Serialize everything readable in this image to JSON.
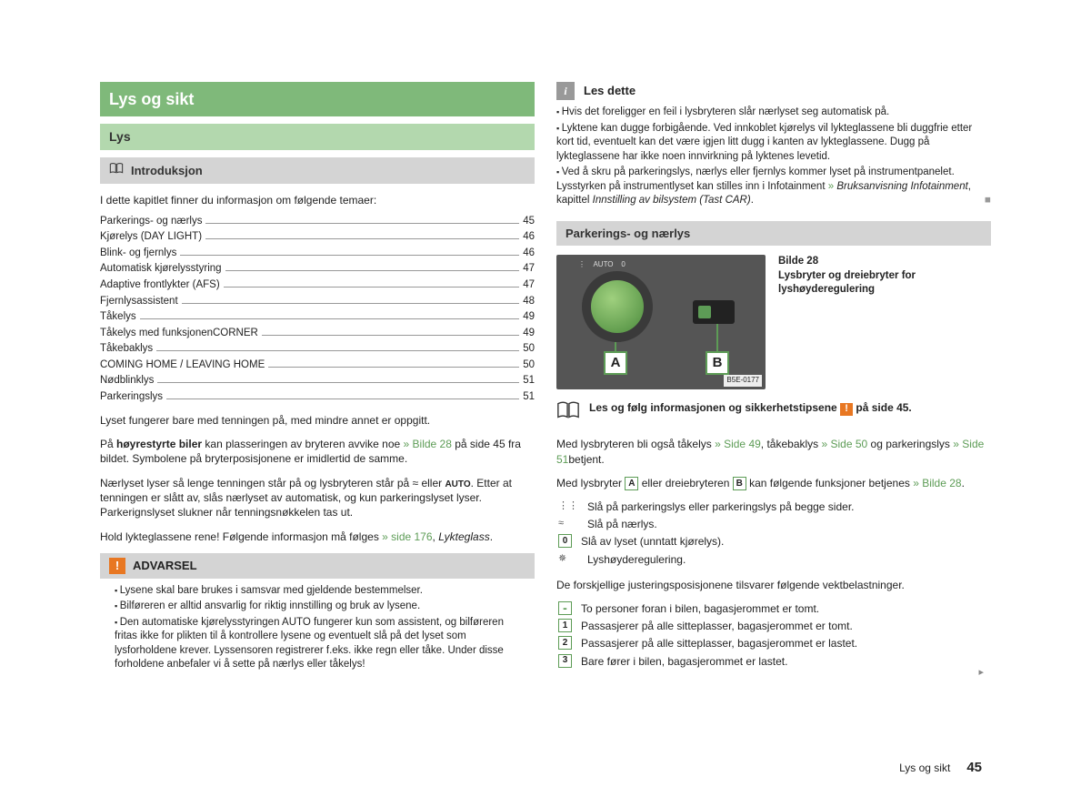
{
  "colors": {
    "title_bg": "#7fb97a",
    "sub_bg": "#b3d8ae",
    "section_bg": "#d4d4d4",
    "link": "#5d9c56",
    "warn": "#e87722"
  },
  "left": {
    "title": "Lys og sikt",
    "sub": "Lys",
    "section": "Introduksjon",
    "intro": "I dette kapitlet finner du informasjon om følgende temaer:",
    "toc": [
      {
        "label": "Parkerings- og nærlys",
        "page": "45"
      },
      {
        "label": "Kjørelys (DAY LIGHT)",
        "page": "46"
      },
      {
        "label": "Blink- og fjernlys",
        "page": "46"
      },
      {
        "label": "Automatisk kjørelysstyring",
        "page": "47"
      },
      {
        "label": "Adaptive frontlykter (AFS)",
        "page": "47"
      },
      {
        "label": "Fjernlysassistent",
        "page": "48"
      },
      {
        "label": "Tåkelys",
        "page": "49"
      },
      {
        "label": "Tåkelys med funksjonenCORNER",
        "page": "49"
      },
      {
        "label": "Tåkebaklys",
        "page": "50"
      },
      {
        "label": "COMING HOME / LEAVING HOME",
        "page": "50"
      },
      {
        "label": "Nødblinklys",
        "page": "51"
      },
      {
        "label": "Parkeringslys",
        "page": "51"
      }
    ],
    "p1": "Lyset fungerer bare med tenningen på, med mindre annet er oppgitt.",
    "p2a": "På ",
    "p2b": "høyrestyrte biler",
    "p2c": " kan plasseringen av bryteren avvike noe ",
    "p2link": "» Bilde 28",
    "p2d": " på side 45 fra bildet. Symbolene på bryterposisjonene er imidlertid de samme.",
    "p3a": "Nærlyset lyser så lenge tenningen står på og lysbryteren står på ",
    "p3s1": "≈",
    "p3b": " eller ",
    "p3s2": "AUTO",
    "p3c": ". Etter at tenningen er slått av, slås nærlyset av automatisk, og kun parkeringslyset lyser. Parkerignslyset slukner når tenningsnøkkelen tas ut.",
    "p4a": "Hold lykteglassene rene! Følgende informasjon må følges ",
    "p4link": "» side 176",
    "p4b": ", ",
    "p4i": "Lykteglass",
    "p4c": ".",
    "warn_title": "ADVARSEL",
    "warn": [
      "Lysene skal bare brukes i samsvar med gjeldende bestemmelser.",
      "Bilføreren er alltid ansvarlig for riktig innstilling og bruk av lysene.",
      "Den automatiske kjørelysstyringen AUTO fungerer kun som assistent, og bilføreren fritas ikke for plikten til å kontrollere lysene og eventuelt slå på det lyset som lysforholdene krever. Lyssensoren registrerer f.eks. ikke regn eller tåke. Under disse forholdene anbefaler vi å sette på nærlys eller tåkelys!"
    ]
  },
  "right": {
    "note_title": "Les dette",
    "notes": [
      "Hvis det foreligger en feil i lysbryteren slår nærlyset seg automatisk på.",
      "Lyktene kan dugge forbigående. Ved innkoblet kjørelys vil lykteglassene bli duggfrie etter kort tid, eventuelt kan det være igjen litt dugg i kanten av lykteglassene. Dugg på lykteglassene har ikke noen innvirkning på lyktenes levetid."
    ],
    "note3a": "Ved å skru på parkeringslys, nærlys eller fjernlys kommer lyset på instrumentpanelet. Lysstyrken på instrumentlyset kan stilles inn i Infotainment ",
    "note3link": "» ",
    "note3i1": "Bruksanvisning Infotainment",
    "note3b": ", kapittel ",
    "note3i2": "Innstilling av bilsystem (Tast CAR)",
    "note3c": ".",
    "section2": "Parkerings- og nærlys",
    "fig_num": "Bilde 28",
    "fig_cap": "Lysbryter og dreiebryter for lyshøyderegulering",
    "fig_code": "B5E-0177",
    "read_a": "Les og følg informasjonen og sikkerhetstipsene ",
    "read_b": " på side 45.",
    "p5a": "Med lysbryteren bli også tåkelys ",
    "p5l1": "» Side 49",
    "p5b": ", tåkebaklys ",
    "p5l2": "» Side 50",
    "p5c": " og parkeringslys ",
    "p5l3": "» Side 51",
    "p5d": "betjent.",
    "p6a": "Med lysbryter ",
    "p6b": " eller dreiebryteren ",
    "p6c": " kan følgende funksjoner betjenes ",
    "p6link": "» Bilde 28",
    "p6d": ".",
    "funcs": [
      {
        "sym": "⋮⋮",
        "text": "Slå på parkeringslys eller parkeringslys på begge sider."
      },
      {
        "sym": "≈",
        "text": "Slå på nærlys."
      },
      {
        "sym": "0",
        "text": "Slå av lyset (unntatt kjørelys)."
      },
      {
        "sym": "✵",
        "text": "Lyshøyderegulering."
      }
    ],
    "p7": "De forskjellige justeringsposisjonene tilsvarer følgende vektbelastninger.",
    "loads": [
      {
        "n": "-",
        "text": "To personer foran i bilen, bagasjerommet er tomt.",
        "dot": true
      },
      {
        "n": "1",
        "text": "Passasjerer på alle sitteplasser, bagasjerommet er tomt."
      },
      {
        "n": "2",
        "text": "Passasjerer på alle sitteplasser, bagasjerommet er lastet."
      },
      {
        "n": "3",
        "text": "Bare fører i bilen, bagasjerommet er lastet."
      }
    ]
  },
  "footer": {
    "section": "Lys og sikt",
    "page": "45"
  }
}
